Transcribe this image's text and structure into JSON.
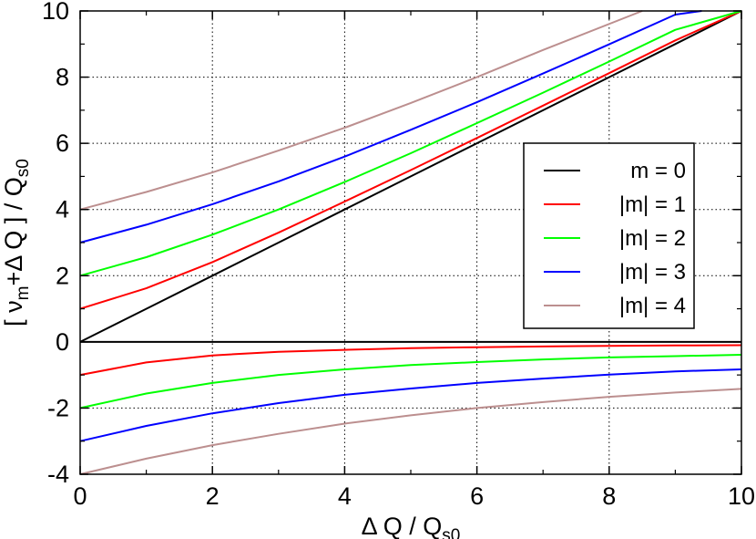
{
  "chart_data": {
    "type": "line",
    "title": "",
    "xlabel": "Δ Q / Q",
    "xlabel_sub": "s0",
    "ylabel_parts": [
      "[ ν",
      "m",
      "+Δ Q ] / Q",
      "s0"
    ],
    "xlim": [
      0,
      10
    ],
    "ylim": [
      -4,
      10
    ],
    "xticks": [
      0,
      2,
      4,
      6,
      8,
      10
    ],
    "yticks": [
      -4,
      -2,
      0,
      2,
      4,
      6,
      8,
      10
    ],
    "grid": true,
    "legend_position": "right",
    "series": [
      {
        "name": "m = 0",
        "color": "#000000",
        "x": [
          0,
          1,
          2,
          3,
          4,
          5,
          6,
          7,
          8,
          9,
          10
        ],
        "values": [
          0,
          1,
          2,
          3,
          4,
          5,
          6,
          7,
          8,
          9,
          10
        ]
      },
      {
        "name": "|m| = 1",
        "color": "#ff0000",
        "x": [
          0,
          1,
          2,
          3,
          4,
          5,
          6,
          7,
          8,
          9,
          10
        ],
        "values": [
          1.0,
          1.62,
          2.41,
          3.3,
          4.24,
          5.19,
          6.16,
          7.14,
          8.12,
          9.11,
          10.0
        ]
      },
      {
        "name": "|m| = 2",
        "color": "#00ff00",
        "x": [
          0,
          1,
          2,
          3,
          4,
          5,
          6,
          7,
          8,
          9,
          10
        ],
        "values": [
          2.0,
          2.56,
          3.24,
          4.0,
          4.83,
          5.7,
          6.61,
          7.53,
          8.47,
          9.43,
          10.0
        ]
      },
      {
        "name": "|m| = 3",
        "color": "#0000ff",
        "x": [
          0,
          1,
          2,
          3,
          4,
          5,
          6,
          7,
          8,
          9,
          9.4
        ],
        "values": [
          3.0,
          3.54,
          4.16,
          4.85,
          5.6,
          6.41,
          7.24,
          8.11,
          8.99,
          9.89,
          10.0
        ]
      },
      {
        "name": "|m| = 4",
        "color": "#bc8f8f",
        "x": [
          0,
          1,
          2,
          3,
          4,
          5,
          6,
          7,
          8.5
        ],
        "values": [
          4.0,
          4.53,
          5.12,
          5.78,
          6.47,
          7.22,
          8.0,
          8.82,
          10.0
        ]
      },
      {
        "name": "",
        "color": "#000000",
        "x": [
          0,
          10
        ],
        "values": [
          0,
          0
        ]
      },
      {
        "name": "",
        "color": "#ff0000",
        "x": [
          0,
          1,
          2,
          3,
          4,
          5,
          6,
          7,
          8,
          9,
          10
        ],
        "values": [
          -1.0,
          -0.62,
          -0.41,
          -0.3,
          -0.24,
          -0.19,
          -0.16,
          -0.14,
          -0.12,
          -0.11,
          -0.1
        ]
      },
      {
        "name": "",
        "color": "#00ff00",
        "x": [
          0,
          1,
          2,
          3,
          4,
          5,
          6,
          7,
          8,
          9,
          10
        ],
        "values": [
          -2.0,
          -1.56,
          -1.24,
          -1.0,
          -0.83,
          -0.7,
          -0.61,
          -0.53,
          -0.47,
          -0.43,
          -0.39
        ]
      },
      {
        "name": "",
        "color": "#0000ff",
        "x": [
          0,
          1,
          2,
          3,
          4,
          5,
          6,
          7,
          8,
          9,
          10
        ],
        "values": [
          -3.0,
          -2.54,
          -2.16,
          -1.85,
          -1.6,
          -1.41,
          -1.24,
          -1.11,
          -0.99,
          -0.89,
          -0.83
        ]
      },
      {
        "name": "",
        "color": "#bc8f8f",
        "x": [
          0,
          1,
          2,
          3,
          4,
          5,
          6,
          7,
          8,
          9,
          10
        ],
        "values": [
          -4.0,
          -3.53,
          -3.12,
          -2.78,
          -2.47,
          -2.22,
          -2.0,
          -1.82,
          -1.66,
          -1.53,
          -1.42
        ]
      }
    ]
  }
}
